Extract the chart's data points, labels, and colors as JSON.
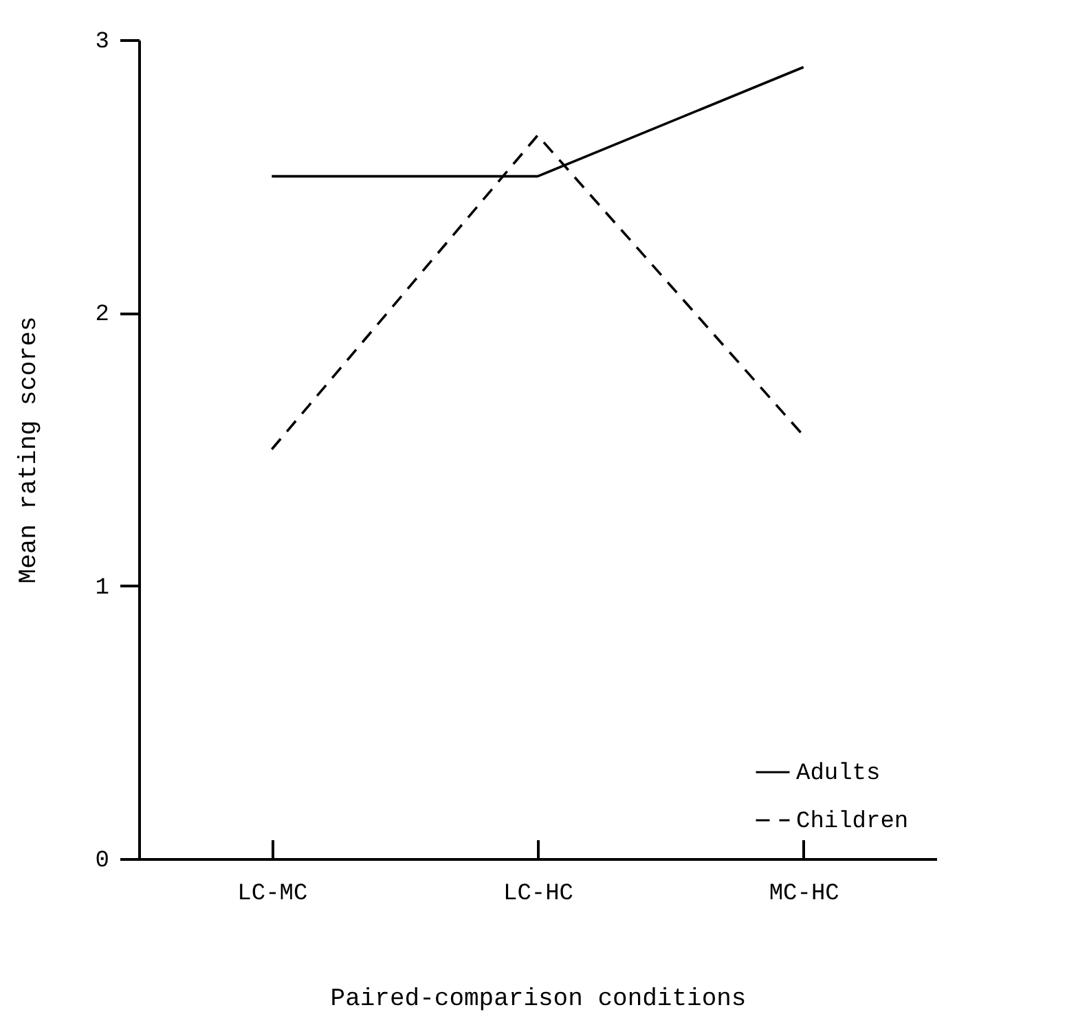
{
  "chart_data": {
    "type": "line",
    "xlabel": "Paired-comparison conditions",
    "ylabel": "Mean rating scores",
    "categories": [
      "LC-MC",
      "LC-HC",
      "MC-HC"
    ],
    "ylim": [
      0,
      3
    ],
    "yticks": [
      0,
      1,
      2,
      3
    ],
    "grid": false,
    "legend": "bottom right",
    "marker": "none",
    "series": [
      {
        "name": "Adults",
        "color": "#000000",
        "line_style": "solid",
        "values": [
          2.5,
          2.5,
          2.9
        ]
      },
      {
        "name": "Children",
        "color": "#000000",
        "line_style": "dashed",
        "values": [
          1.5,
          2.65,
          1.55
        ]
      }
    ]
  }
}
